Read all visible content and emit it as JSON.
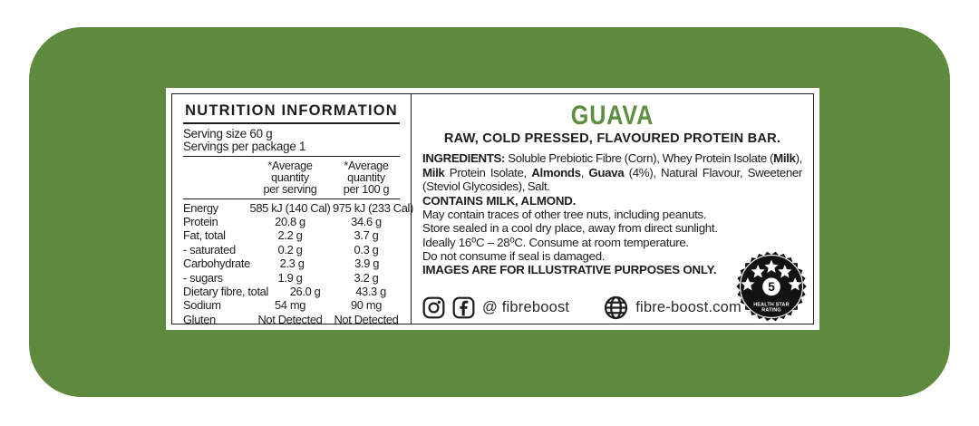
{
  "colors": {
    "package_green": "#5e8a3d",
    "flavour_green": "#5f8f3e",
    "ink": "#1d1d1b"
  },
  "label": {
    "nutrition_panel": {
      "title": "NUTRITION INFORMATION",
      "serving_size": "Serving size 60 g",
      "servings_per_package": "Servings per package 1",
      "column_headers": {
        "per_serving": [
          "*Average",
          "quantity",
          "per serving"
        ],
        "per_100g": [
          "*Average",
          "quantity",
          "per 100 g"
        ]
      },
      "rows": [
        {
          "label": "Energy",
          "per_serving": "585 kJ (140 Cal)",
          "per_100g": "975 kJ (233 Cal)"
        },
        {
          "label": "Protein",
          "per_serving": "20.8 g",
          "per_100g": "34.6 g"
        },
        {
          "label": "Fat, total",
          "per_serving": "2.2 g",
          "per_100g": "3.7 g"
        },
        {
          "label": "- saturated",
          "per_serving": "0.2 g",
          "per_100g": "0.3 g"
        },
        {
          "label": "Carbohydrate",
          "per_serving": "2.3 g",
          "per_100g": "3.9 g"
        },
        {
          "label": "- sugars",
          "per_serving": "1.9 g",
          "per_100g": "3.2 g"
        },
        {
          "label": "Dietary fibre, total",
          "per_serving": "26.0 g",
          "per_100g": "43.3 g"
        },
        {
          "label": "Sodium",
          "per_serving": "54 mg",
          "per_100g": "90 mg"
        },
        {
          "label": "Gluten",
          "per_serving": "Not Detected",
          "per_100g": "Not Detected"
        }
      ]
    },
    "product_panel": {
      "flavour": "GUAVA",
      "tagline": "RAW, COLD PRESSED, FLAVOURED PROTEIN BAR.",
      "ingredients_segments": [
        {
          "text": "INGREDIENTS: ",
          "bold": true
        },
        {
          "text": "Soluble Prebiotic Fibre (Corn), Whey Protein Isolate (",
          "bold": false
        },
        {
          "text": "Milk",
          "bold": true
        },
        {
          "text": "), ",
          "bold": false
        },
        {
          "text": "Milk",
          "bold": true
        },
        {
          "text": " Protein Isolate, ",
          "bold": false
        },
        {
          "text": "Almonds",
          "bold": true
        },
        {
          "text": ", ",
          "bold": false
        },
        {
          "text": "Guava",
          "bold": true
        },
        {
          "text": " (4%), Natural Flavour, Sweetener (Steviol Glycosides), Salt.",
          "bold": false
        }
      ],
      "contains": "CONTAINS MILK, ALMOND.",
      "storage_lines": [
        "May contain traces of other tree nuts, including peanuts.",
        "Store sealed in a cool dry place, away from direct sunlight.",
        "Ideally 16⁰C – 28⁰C. Consume at room temperature.",
        "Do not consume if seal is damaged."
      ],
      "disclaimer": "IMAGES ARE FOR ILLUSTRATIVE PURPOSES ONLY.",
      "social": {
        "icons": [
          "instagram-icon",
          "facebook-icon",
          "globe-icon"
        ],
        "handle": "@ fibreboost",
        "website": "fibre-boost.com"
      },
      "health_star": {
        "rating": "5",
        "stars": 5,
        "caption_line1": "HEALTH STAR",
        "caption_line2": "RATING"
      }
    }
  }
}
